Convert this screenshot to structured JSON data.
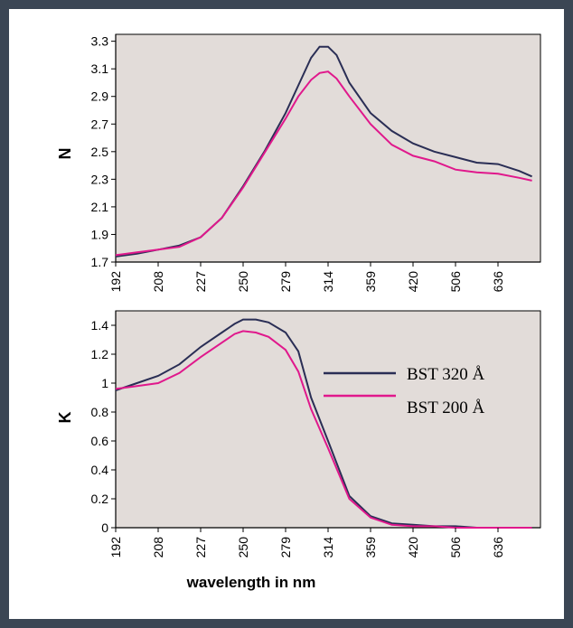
{
  "colors": {
    "series_320": "#2a2e55",
    "series_200": "#e0188c",
    "plot_bg": "#e2dcd9",
    "frame_bg": "#3b4654"
  },
  "x_ticks": [
    "192",
    "208",
    "227",
    "250",
    "279",
    "314",
    "359",
    "420",
    "506",
    "636"
  ],
  "xlabel": "wavelength in nm",
  "legend": {
    "position": "right",
    "entries": [
      "BST  320 Å",
      "BST  200 Å"
    ]
  },
  "chart_data": [
    {
      "type": "line",
      "ylabel": "N",
      "ylim": [
        1.7,
        3.35
      ],
      "y_ticks": [
        "3.3",
        "3.1",
        "2.9",
        "2.7",
        "2.5",
        "2.3",
        "2.1",
        "1.9",
        "1.7"
      ],
      "x_ticks": [
        "192",
        "208",
        "227",
        "250",
        "279",
        "314",
        "359",
        "420",
        "506",
        "636"
      ],
      "series": [
        {
          "name": "BST  320 Å",
          "points": [
            [
              0,
              1.74
            ],
            [
              0.5,
              1.76
            ],
            [
              1,
              1.79
            ],
            [
              1.5,
              1.82
            ],
            [
              2,
              1.88
            ],
            [
              2.5,
              2.02
            ],
            [
              3,
              2.25
            ],
            [
              3.5,
              2.5
            ],
            [
              4,
              2.78
            ],
            [
              4.3,
              2.98
            ],
            [
              4.6,
              3.18
            ],
            [
              4.8,
              3.26
            ],
            [
              5,
              3.26
            ],
            [
              5.2,
              3.2
            ],
            [
              5.5,
              3.0
            ],
            [
              6,
              2.78
            ],
            [
              6.5,
              2.65
            ],
            [
              7,
              2.56
            ],
            [
              7.5,
              2.5
            ],
            [
              8,
              2.46
            ],
            [
              8.5,
              2.42
            ],
            [
              9,
              2.41
            ],
            [
              9.5,
              2.36
            ],
            [
              9.8,
              2.32
            ]
          ]
        },
        {
          "name": "BST  200 Å",
          "points": [
            [
              0,
              1.75
            ],
            [
              0.5,
              1.77
            ],
            [
              1,
              1.79
            ],
            [
              1.5,
              1.81
            ],
            [
              2,
              1.88
            ],
            [
              2.5,
              2.02
            ],
            [
              3,
              2.24
            ],
            [
              3.5,
              2.49
            ],
            [
              4,
              2.74
            ],
            [
              4.3,
              2.9
            ],
            [
              4.6,
              3.02
            ],
            [
              4.8,
              3.07
            ],
            [
              5,
              3.08
            ],
            [
              5.2,
              3.03
            ],
            [
              5.5,
              2.9
            ],
            [
              6,
              2.7
            ],
            [
              6.5,
              2.55
            ],
            [
              7,
              2.47
            ],
            [
              7.5,
              2.43
            ],
            [
              8,
              2.37
            ],
            [
              8.5,
              2.35
            ],
            [
              9,
              2.34
            ],
            [
              9.5,
              2.31
            ],
            [
              9.8,
              2.29
            ]
          ]
        }
      ]
    },
    {
      "type": "line",
      "ylabel": "K",
      "ylim": [
        0,
        1.5
      ],
      "y_ticks": [
        "1.4",
        "1.2",
        "1",
        "0.8",
        "0.6",
        "0.4",
        "0.2",
        "0"
      ],
      "x_ticks": [
        "192",
        "208",
        "227",
        "250",
        "279",
        "314",
        "359",
        "420",
        "506",
        "636"
      ],
      "series": [
        {
          "name": "BST  320 Å",
          "points": [
            [
              0,
              0.95
            ],
            [
              0.5,
              1.0
            ],
            [
              1,
              1.05
            ],
            [
              1.5,
              1.13
            ],
            [
              2,
              1.25
            ],
            [
              2.5,
              1.35
            ],
            [
              2.8,
              1.41
            ],
            [
              3,
              1.44
            ],
            [
              3.3,
              1.44
            ],
            [
              3.6,
              1.42
            ],
            [
              4,
              1.35
            ],
            [
              4.3,
              1.22
            ],
            [
              4.6,
              0.9
            ],
            [
              5,
              0.6
            ],
            [
              5.5,
              0.22
            ],
            [
              6,
              0.08
            ],
            [
              6.5,
              0.03
            ],
            [
              7,
              0.02
            ],
            [
              7.5,
              0.01
            ],
            [
              8,
              0.01
            ],
            [
              8.5,
              0
            ],
            [
              9,
              0
            ],
            [
              9.5,
              0
            ],
            [
              9.8,
              0
            ]
          ]
        },
        {
          "name": "BST  200 Å",
          "points": [
            [
              0,
              0.96
            ],
            [
              0.5,
              0.98
            ],
            [
              1,
              1.0
            ],
            [
              1.5,
              1.07
            ],
            [
              2,
              1.18
            ],
            [
              2.5,
              1.28
            ],
            [
              2.8,
              1.34
            ],
            [
              3,
              1.36
            ],
            [
              3.3,
              1.35
            ],
            [
              3.6,
              1.32
            ],
            [
              4,
              1.23
            ],
            [
              4.3,
              1.08
            ],
            [
              4.6,
              0.82
            ],
            [
              5,
              0.55
            ],
            [
              5.5,
              0.2
            ],
            [
              6,
              0.07
            ],
            [
              6.5,
              0.02
            ],
            [
              7,
              0.01
            ],
            [
              7.5,
              0.01
            ],
            [
              8,
              0
            ],
            [
              8.5,
              0
            ],
            [
              9,
              0
            ],
            [
              9.5,
              0
            ],
            [
              9.8,
              0
            ]
          ]
        }
      ]
    }
  ]
}
